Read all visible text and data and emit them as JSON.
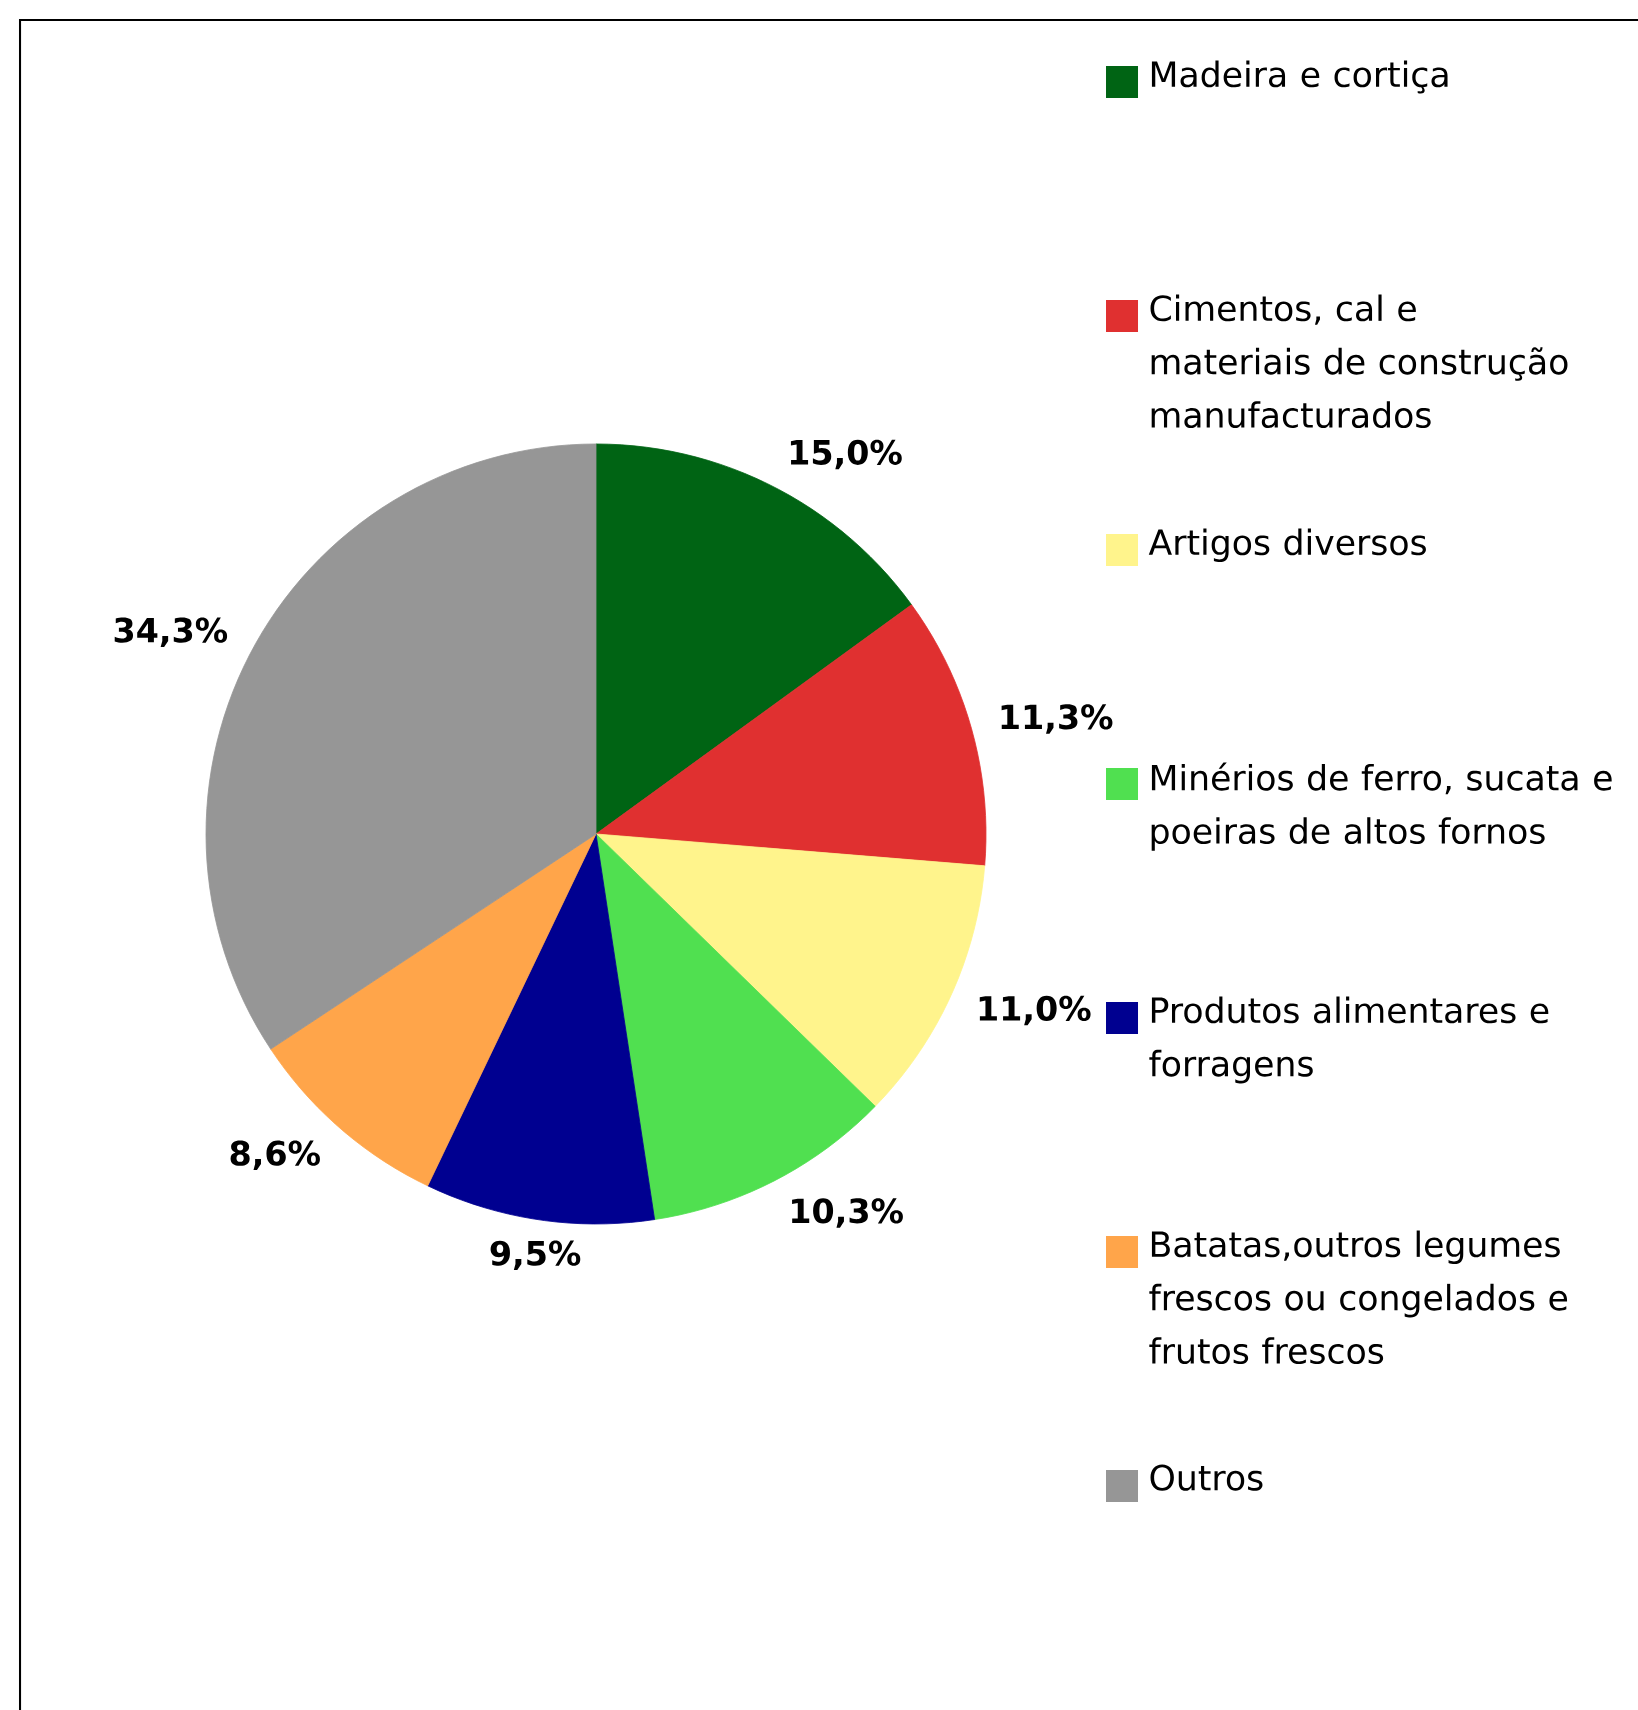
{
  "chart_data": {
    "type": "pie",
    "categories": [
      "Madeira e cortiça",
      "Cimentos, cal e materiais de construção manufacturados",
      "Artigos diversos",
      "Minérios de ferro, sucata e poeiras de altos fornos",
      "Produtos alimentares e forragens",
      "Batatas,outros legumes frescos ou congelados e frutos frescos",
      "Outros"
    ],
    "values": [
      15.0,
      11.3,
      11.0,
      10.3,
      9.5,
      8.6,
      34.3
    ],
    "value_labels": [
      "15,0%",
      "11,3%",
      "11,0%",
      "10,3%",
      "9,5%",
      "8,6%",
      "34,3%"
    ],
    "colors": [
      "#006414",
      "#e03030",
      "#fff48c",
      "#50e050",
      "#000090",
      "#ffa54a",
      "#969696"
    ],
    "legend": "right"
  }
}
